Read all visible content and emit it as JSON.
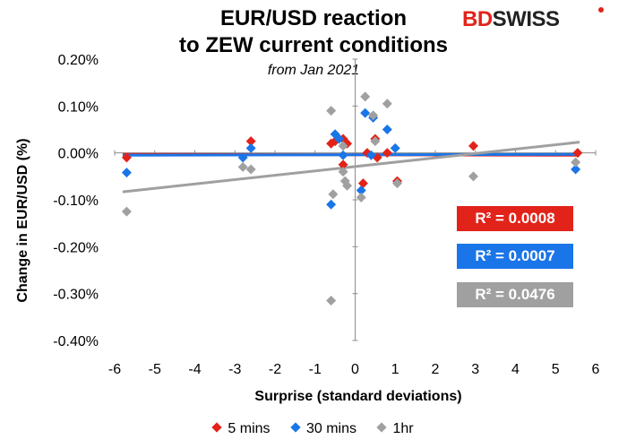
{
  "brand": {
    "bd": "BD",
    "swiss": "SWISS"
  },
  "chart_data": {
    "type": "scatter",
    "title_line1": "EUR/USD reaction",
    "title_line2": "to ZEW current conditions",
    "subtitle": "from Jan 2021",
    "xlabel": "Surprise (standard deviations)",
    "ylabel": "Change in EUR/USD (%)",
    "xlim": [
      -6,
      6
    ],
    "ylim": [
      -0.4,
      0.2
    ],
    "x_ticks": [
      -6,
      -5,
      -4,
      -3,
      -2,
      -1,
      0,
      1,
      2,
      3,
      4,
      5,
      6
    ],
    "y_ticks": [
      0.2,
      0.1,
      0.0,
      -0.1,
      -0.2,
      -0.3,
      -0.4
    ],
    "y_tick_labels": [
      "0.20%",
      "0.10%",
      "0.00%",
      "-0.10%",
      "-0.20%",
      "-0.30%",
      "-0.40%"
    ],
    "legend_position": "bottom",
    "series": [
      {
        "name": "5 mins",
        "color": "#e2231a",
        "points": [
          [
            -5.7,
            -0.01
          ],
          [
            -2.6,
            0.025
          ],
          [
            -0.6,
            0.02
          ],
          [
            -0.5,
            0.025
          ],
          [
            -0.3,
            0.03
          ],
          [
            -0.3,
            -0.025
          ],
          [
            -0.2,
            0.02
          ],
          [
            0.2,
            -0.065
          ],
          [
            0.3,
            0.0
          ],
          [
            0.5,
            0.03
          ],
          [
            0.55,
            -0.01
          ],
          [
            0.8,
            0.0
          ],
          [
            1.05,
            -0.06
          ],
          [
            2.95,
            0.015
          ],
          [
            5.55,
            0.0
          ]
        ],
        "trend": [
          [
            -5.8,
            -0.003
          ],
          [
            5.6,
            -0.005
          ]
        ],
        "r2_label": "R² = 0.0008"
      },
      {
        "name": "30 mins",
        "color": "#1a75e8",
        "points": [
          [
            -5.7,
            -0.042
          ],
          [
            -2.8,
            -0.01
          ],
          [
            -2.6,
            0.01
          ],
          [
            -0.6,
            -0.11
          ],
          [
            -0.5,
            0.04
          ],
          [
            -0.4,
            0.03
          ],
          [
            -0.3,
            -0.005
          ],
          [
            0.15,
            -0.08
          ],
          [
            0.25,
            0.085
          ],
          [
            0.4,
            -0.005
          ],
          [
            0.45,
            0.075
          ],
          [
            0.8,
            0.05
          ],
          [
            1.0,
            0.01
          ],
          [
            5.5,
            -0.035
          ]
        ],
        "trend": [
          [
            -5.8,
            -0.005
          ],
          [
            5.6,
            -0.003
          ]
        ],
        "r2_label": "R² = 0.0007"
      },
      {
        "name": "1hr",
        "color": "#a0a0a0",
        "points": [
          [
            -5.7,
            -0.125
          ],
          [
            -2.8,
            -0.03
          ],
          [
            -2.6,
            -0.035
          ],
          [
            -0.6,
            0.09
          ],
          [
            -0.55,
            -0.088
          ],
          [
            -0.6,
            -0.315
          ],
          [
            -0.3,
            0.015
          ],
          [
            -0.3,
            -0.04
          ],
          [
            -0.25,
            -0.06
          ],
          [
            -0.2,
            -0.07
          ],
          [
            0.15,
            -0.095
          ],
          [
            0.25,
            0.12
          ],
          [
            0.45,
            0.08
          ],
          [
            0.5,
            0.025
          ],
          [
            0.8,
            0.105
          ],
          [
            1.05,
            -0.065
          ],
          [
            2.95,
            -0.05
          ],
          [
            5.5,
            -0.02
          ]
        ],
        "trend": [
          [
            -5.8,
            -0.083
          ],
          [
            5.6,
            0.023
          ]
        ],
        "r2_label": "R² = 0.0476"
      }
    ]
  }
}
